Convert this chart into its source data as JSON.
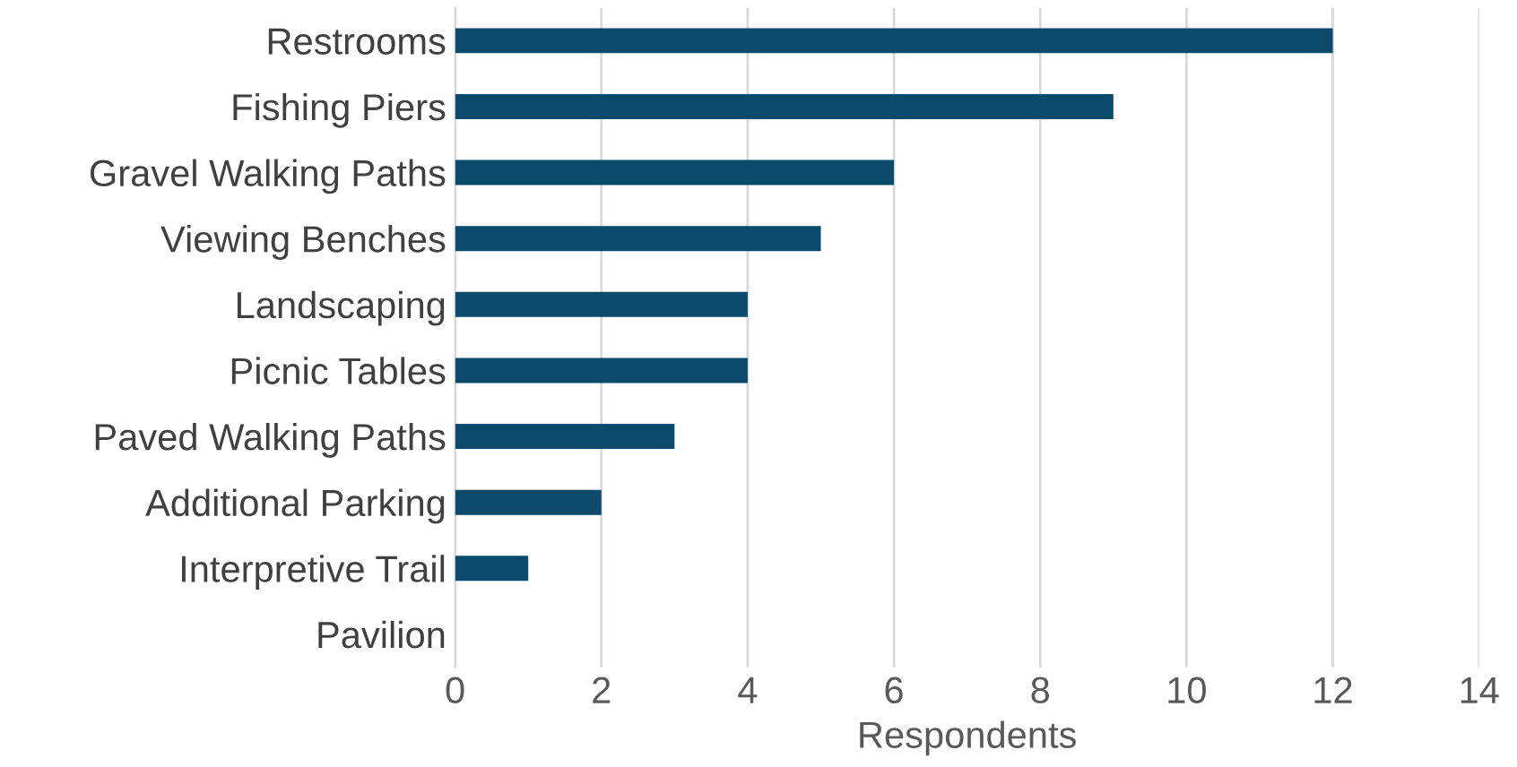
{
  "chart_data": {
    "type": "bar",
    "orientation": "horizontal",
    "xlabel": "Respondents",
    "categories": [
      "Restrooms",
      "Fishing Piers",
      "Gravel Walking Paths",
      "Viewing Benches",
      "Landscaping",
      "Picnic Tables",
      "Paved Walking Paths",
      "Additional Parking",
      "Interpretive Trail",
      "Pavilion"
    ],
    "values": [
      12,
      9,
      6,
      5,
      4,
      4,
      3,
      2,
      1,
      0
    ],
    "color": "#0b4a6b",
    "xlim": [
      0,
      14
    ],
    "xticks": [
      0,
      2,
      4,
      6,
      8,
      10,
      12,
      14
    ],
    "grid": "x"
  }
}
